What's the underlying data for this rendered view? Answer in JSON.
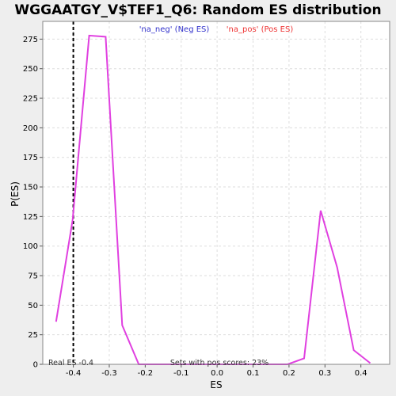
{
  "chart_data": {
    "type": "line",
    "title": "WGGAATGY_V$TEF1_Q6: Random ES distribution",
    "xlabel": "ES",
    "ylabel": "P(ES)",
    "xlim": [
      -0.485,
      0.48
    ],
    "ylim": [
      0,
      290
    ],
    "x_ticks": [
      -0.4,
      -0.3,
      -0.2,
      -0.1,
      0.0,
      0.1,
      0.2,
      0.3,
      0.4
    ],
    "x_tick_labels": [
      "-0.4",
      "-0.3",
      "-0.2",
      "-0.1",
      "0.0",
      "0.1",
      "0.2",
      "0.3",
      "0.4"
    ],
    "y_ticks": [
      0,
      25,
      50,
      75,
      100,
      125,
      150,
      175,
      200,
      225,
      250,
      275
    ],
    "y_tick_labels": [
      "0",
      "25",
      "50",
      "75",
      "100",
      "125",
      "150",
      "175",
      "200",
      "225",
      "250",
      "275"
    ],
    "grid": true,
    "legend": [
      {
        "label": "'na_neg' (Neg ES)",
        "color": "#3333cc"
      },
      {
        "label": "'na_pos' (Pos ES)",
        "color": "#ee3333"
      }
    ],
    "series": [
      {
        "color": "#e040e0",
        "x": [
          -0.448,
          -0.402,
          -0.356,
          -0.31,
          -0.264,
          -0.218,
          -0.172,
          -0.126,
          -0.08,
          -0.034,
          0.012,
          0.058,
          0.104,
          0.15,
          0.196,
          0.242,
          0.288,
          0.334,
          0.38,
          0.426
        ],
        "y": [
          36,
          122,
          278,
          277,
          33,
          0,
          0,
          0,
          0,
          0,
          0,
          0,
          0,
          0,
          0,
          5,
          130,
          82,
          12,
          1
        ]
      }
    ],
    "real_es": -0.4,
    "annotations": {
      "real_es": "Real ES -0.4",
      "pos_scores": "Sets with pos scores: 23%"
    }
  }
}
